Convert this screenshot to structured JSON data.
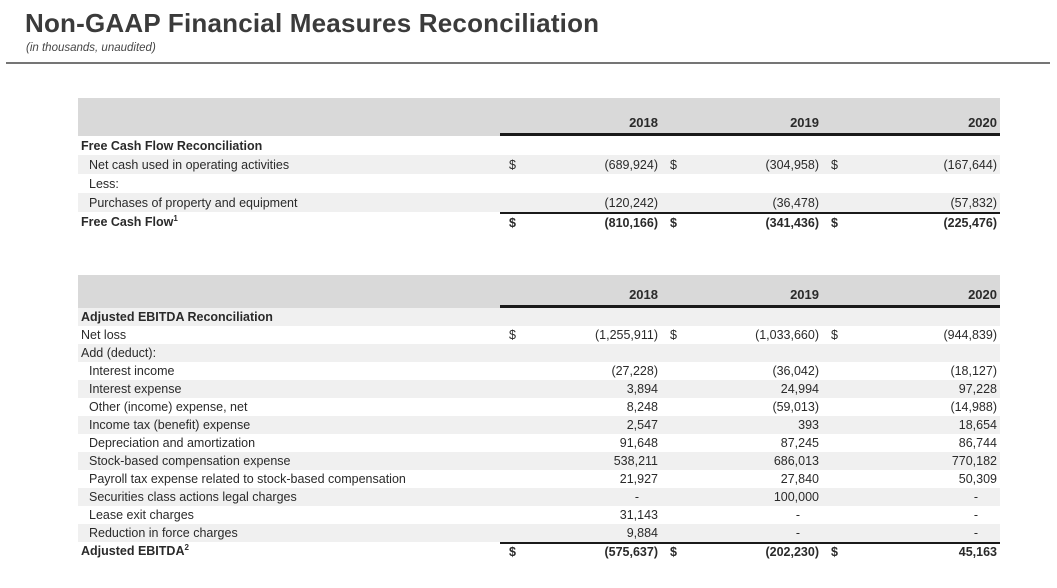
{
  "page": {
    "title": "Non-GAAP Financial Measures Reconciliation",
    "subtitle": "(in thousands, unaudited)"
  },
  "colors": {
    "header_band": "#d9d9d9",
    "row_shade": "#f0f0f0",
    "line_black": "#1a1a1a",
    "rule_gray": "#757575",
    "text": "#2a2a2a",
    "title": "#3b3b3b"
  },
  "tables": [
    {
      "name": "free-cash-flow-reconciliation",
      "years": [
        "2018",
        "2019",
        "2020"
      ],
      "rows": [
        {
          "label": "Free Cash Flow Reconciliation",
          "bold": true,
          "indent": false,
          "shaded": false,
          "dollar": false,
          "total": false,
          "values": null
        },
        {
          "label": "Net cash used in operating activities",
          "bold": false,
          "indent": true,
          "shaded": true,
          "dollar": true,
          "total": false,
          "values": [
            "(689,924)",
            "(304,958)",
            "(167,644)"
          ]
        },
        {
          "label": "Less:",
          "bold": false,
          "indent": true,
          "shaded": false,
          "dollar": false,
          "total": false,
          "values": null
        },
        {
          "label": "Purchases of property and equipment",
          "bold": false,
          "indent": true,
          "shaded": true,
          "dollar": false,
          "total": false,
          "values": [
            "(120,242)",
            "(36,478)",
            "(57,832)"
          ]
        },
        {
          "label": "Free Cash Flow",
          "sup": "1",
          "bold": true,
          "indent": false,
          "shaded": false,
          "dollar": true,
          "total": true,
          "values": [
            "(810,166)",
            "(341,436)",
            "(225,476)"
          ]
        }
      ]
    },
    {
      "name": "adjusted-ebitda-reconciliation",
      "years": [
        "2018",
        "2019",
        "2020"
      ],
      "rows": [
        {
          "label": "Adjusted EBITDA Reconciliation",
          "bold": true,
          "indent": false,
          "shaded": true,
          "dollar": false,
          "total": false,
          "values": null
        },
        {
          "label": "Net loss",
          "bold": false,
          "indent": false,
          "shaded": false,
          "dollar": true,
          "total": false,
          "values": [
            "(1,255,911)",
            "(1,033,660)",
            "(944,839)"
          ]
        },
        {
          "label": "Add (deduct):",
          "bold": false,
          "indent": false,
          "shaded": true,
          "dollar": false,
          "total": false,
          "values": null
        },
        {
          "label": "Interest income",
          "bold": false,
          "indent": true,
          "shaded": false,
          "dollar": false,
          "total": false,
          "values": [
            "(27,228)",
            "(36,042)",
            "(18,127)"
          ]
        },
        {
          "label": "Interest expense",
          "bold": false,
          "indent": true,
          "shaded": true,
          "dollar": false,
          "total": false,
          "values": [
            "3,894",
            "24,994",
            "97,228"
          ]
        },
        {
          "label": "Other (income) expense, net",
          "bold": false,
          "indent": true,
          "shaded": false,
          "dollar": false,
          "total": false,
          "values": [
            "8,248",
            "(59,013)",
            "(14,988)"
          ]
        },
        {
          "label": "Income tax (benefit) expense",
          "bold": false,
          "indent": true,
          "shaded": true,
          "dollar": false,
          "total": false,
          "values": [
            "2,547",
            "393",
            "18,654"
          ]
        },
        {
          "label": "Depreciation and amortization",
          "bold": false,
          "indent": true,
          "shaded": false,
          "dollar": false,
          "total": false,
          "values": [
            "91,648",
            "87,245",
            "86,744"
          ]
        },
        {
          "label": "Stock-based compensation expense",
          "bold": false,
          "indent": true,
          "shaded": true,
          "dollar": false,
          "total": false,
          "values": [
            "538,211",
            "686,013",
            "770,182"
          ]
        },
        {
          "label": "Payroll tax expense related to stock-based compensation",
          "bold": false,
          "indent": true,
          "shaded": false,
          "dollar": false,
          "total": false,
          "values": [
            "21,927",
            "27,840",
            "50,309"
          ]
        },
        {
          "label": "Securities class actions legal charges",
          "bold": false,
          "indent": true,
          "shaded": true,
          "dollar": false,
          "total": false,
          "values": [
            "-",
            "100,000",
            "-"
          ]
        },
        {
          "label": "Lease exit charges",
          "bold": false,
          "indent": true,
          "shaded": false,
          "dollar": false,
          "total": false,
          "values": [
            "31,143",
            "-",
            "-"
          ]
        },
        {
          "label": "Reduction in force charges",
          "bold": false,
          "indent": true,
          "shaded": true,
          "dollar": false,
          "total": false,
          "values": [
            "9,884",
            "-",
            "-"
          ]
        },
        {
          "label": "Adjusted EBITDA",
          "sup": "2",
          "bold": true,
          "indent": false,
          "shaded": false,
          "dollar": true,
          "total": true,
          "values": [
            "(575,637)",
            "(202,230)",
            "45,163"
          ]
        }
      ]
    }
  ]
}
